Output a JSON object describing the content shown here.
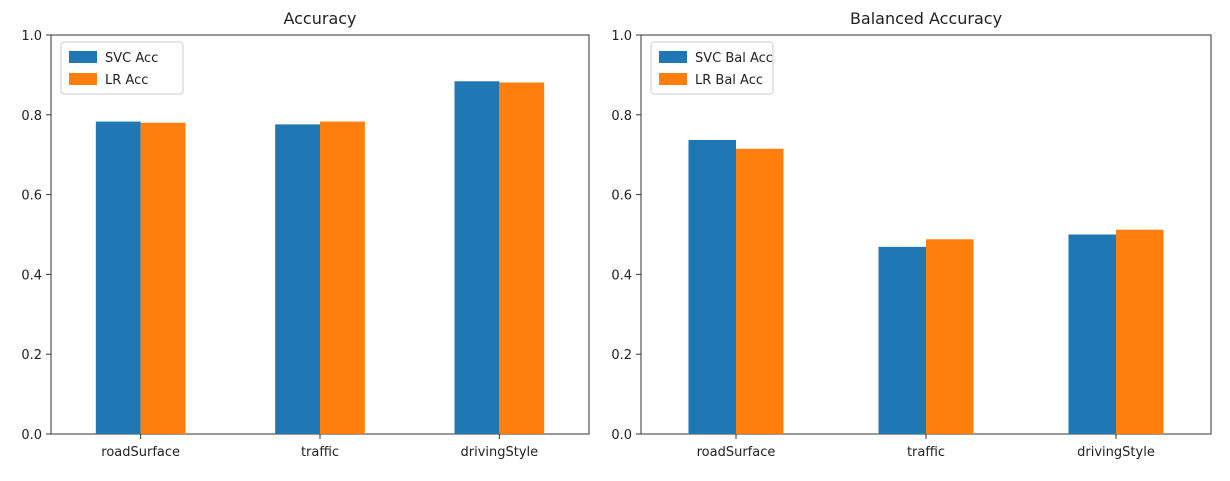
{
  "chart_data": [
    {
      "type": "bar",
      "title": "Accuracy",
      "xlabel": "",
      "ylabel": "",
      "categories": [
        "roadSurface",
        "traffic",
        "drivingStyle"
      ],
      "series": [
        {
          "name": "SVC Acc",
          "values": [
            0.783,
            0.776,
            0.884
          ],
          "color": "#1f77b4"
        },
        {
          "name": "LR Acc",
          "values": [
            0.78,
            0.783,
            0.881
          ],
          "color": "#ff7f0e"
        }
      ],
      "ylim": [
        0,
        1.0
      ],
      "yticks": [
        "0.0",
        "0.2",
        "0.4",
        "0.6",
        "0.8",
        "1.0"
      ],
      "grid": false,
      "legend": "top-left"
    },
    {
      "type": "bar",
      "title": "Balanced Accuracy",
      "xlabel": "",
      "ylabel": "",
      "categories": [
        "roadSurface",
        "traffic",
        "drivingStyle"
      ],
      "series": [
        {
          "name": "SVC Bal Acc",
          "values": [
            0.737,
            0.469,
            0.5
          ],
          "color": "#1f77b4"
        },
        {
          "name": "LR Bal Acc",
          "values": [
            0.715,
            0.488,
            0.512
          ],
          "color": "#ff7f0e"
        }
      ],
      "ylim": [
        0,
        1.0
      ],
      "yticks": [
        "0.0",
        "0.2",
        "0.4",
        "0.6",
        "0.8",
        "1.0"
      ],
      "grid": false,
      "legend": "top-left"
    }
  ]
}
